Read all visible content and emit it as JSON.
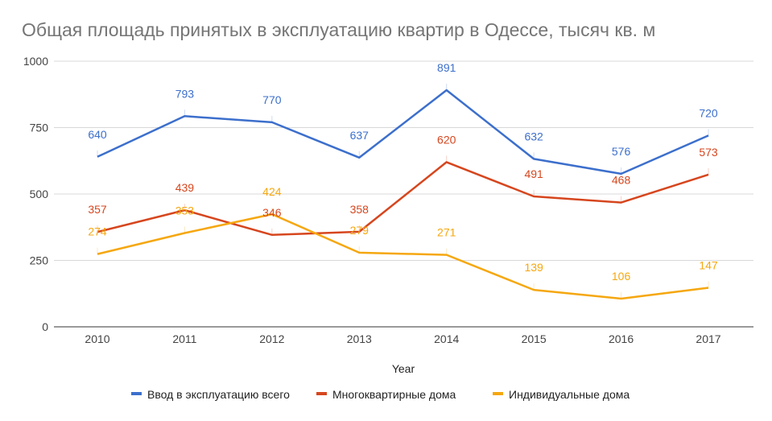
{
  "chart_data": {
    "type": "line",
    "title": "Общая площадь принятых в эксплуатацию квартир в Одессе, тысяч кв. м",
    "xlabel": "Year",
    "ylabel": "",
    "categories": [
      "2010",
      "2011",
      "2012",
      "2013",
      "2014",
      "2015",
      "2016",
      "2017"
    ],
    "ylim": [
      0,
      1000
    ],
    "yticks": [
      0,
      250,
      500,
      750,
      1000
    ],
    "ytick_labels": [
      "0",
      "250",
      "500",
      "750",
      "1000"
    ],
    "grid": true,
    "legend_position": "bottom",
    "series": [
      {
        "name": "Ввод в эксплуатацию всего",
        "color": "#3c6fcc",
        "values": [
          640,
          793,
          770,
          637,
          891,
          632,
          576,
          720
        ]
      },
      {
        "name": "Многоквартирные дома",
        "color": "#d6461e",
        "values": [
          357,
          439,
          346,
          358,
          620,
          491,
          468,
          573
        ]
      },
      {
        "name": "Индивидуальные дома",
        "color": "#f5a70f",
        "values": [
          274,
          353,
          424,
          279,
          271,
          139,
          106,
          147
        ]
      }
    ]
  }
}
